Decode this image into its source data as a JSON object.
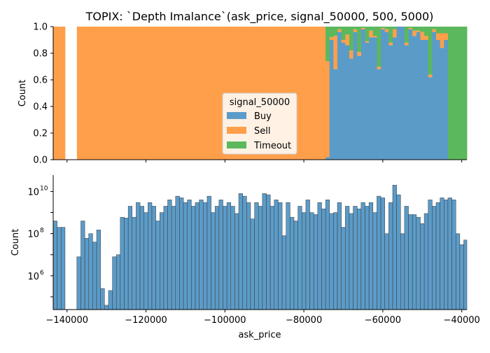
{
  "chart_data": {
    "title": "TOPIX: `Depth Imalance`(ask_price, signal_50000, 500, 5000)",
    "xlabel": "ask_price",
    "xlim": [
      -143500,
      -38700
    ],
    "bin_width": 1000,
    "x_ticks": [
      -140000,
      -120000,
      -100000,
      -80000,
      -60000,
      -40000
    ],
    "x_tick_labels": [
      "−140000",
      "−120000",
      "−100000",
      "−80000",
      "−60000",
      "−40000"
    ],
    "colors": {
      "Buy": "#5b9bc8",
      "Sell": "#ff9f4a",
      "Timeout": "#5cb85c"
    },
    "panels": [
      {
        "type": "bar",
        "stacked": "fill",
        "ylabel": "Count",
        "ylim": [
          0,
          1
        ],
        "y_ticks": [
          0,
          0.2,
          0.4,
          0.6,
          0.8,
          1.0
        ],
        "y_tick_labels": [
          "0.0",
          "0.2",
          "0.4",
          "0.6",
          "0.8",
          "1.0"
        ],
        "legend": {
          "title": "signal_50000",
          "placement": "lower-center",
          "entries": [
            "Buy",
            "Sell",
            "Timeout"
          ]
        },
        "x": [
          -143000,
          -142000,
          -141000,
          -140000,
          -139000,
          -138000,
          -137000,
          -136000,
          -135000,
          -134000,
          -133000,
          -132000,
          -131000,
          -130000,
          -129000,
          -128000,
          -127000,
          -126000,
          -125000,
          -124000,
          -123000,
          -122000,
          -121000,
          -120000,
          -119000,
          -118000,
          -117000,
          -116000,
          -115000,
          -114000,
          -113000,
          -112000,
          -111000,
          -110000,
          -109000,
          -108000,
          -107000,
          -106000,
          -105000,
          -104000,
          -103000,
          -102000,
          -101000,
          -100000,
          -99000,
          -98000,
          -97000,
          -96000,
          -95000,
          -94000,
          -93000,
          -92000,
          -91000,
          -90000,
          -89000,
          -88000,
          -87000,
          -86000,
          -85000,
          -84000,
          -83000,
          -82000,
          -81000,
          -80000,
          -79000,
          -78000,
          -77000,
          -76000,
          -75000,
          -74000,
          -73000,
          -72000,
          -71000,
          -70000,
          -69000,
          -68000,
          -67000,
          -66000,
          -65000,
          -64000,
          -63000,
          -62000,
          -61000,
          -60000,
          -59000,
          -58000,
          -57000,
          -56000,
          -55000,
          -54000,
          -53000,
          -52000,
          -51000,
          -50000,
          -49000,
          -48000,
          -47000,
          -46000,
          -45000,
          -44000,
          -43000,
          -42000,
          -41000,
          -40000,
          -39000
        ],
        "series": [
          {
            "name": "Buy",
            "values": [
              0,
              0,
              0,
              null,
              null,
              null,
              0,
              0,
              0,
              0,
              0,
              0,
              0,
              0,
              0,
              0,
              0,
              0,
              0,
              0,
              0,
              0,
              0,
              0,
              0,
              0,
              0,
              0,
              0,
              0,
              0,
              0,
              0,
              0,
              0,
              0,
              0,
              0,
              0,
              0,
              0,
              0,
              0,
              0,
              0,
              0,
              0,
              0,
              0,
              0,
              0,
              0,
              0,
              0,
              0,
              0,
              0,
              0,
              0,
              0,
              0,
              0,
              0,
              0,
              0,
              0,
              0,
              0,
              0,
              0.02,
              0.9,
              0.68,
              0.96,
              0.88,
              0.86,
              0.76,
              0.96,
              0.78,
              0.98,
              0.88,
              0.92,
              0.92,
              0.68,
              0.98,
              0.96,
              0.86,
              0.92,
              1.0,
              1.0,
              0.86,
              0.98,
              0.93,
              0.96,
              0.9,
              0.9,
              0.62,
              0.96,
              0.9,
              0.84,
              0.9,
              0,
              0,
              0,
              0,
              0
            ]
          },
          {
            "name": "Sell",
            "values": [
              1,
              1,
              1,
              null,
              null,
              null,
              1,
              1,
              1,
              1,
              1,
              1,
              1,
              1,
              1,
              1,
              1,
              1,
              1,
              1,
              1,
              1,
              1,
              1,
              1,
              1,
              1,
              1,
              1,
              1,
              1,
              1,
              1,
              1,
              1,
              1,
              1,
              1,
              1,
              1,
              1,
              1,
              1,
              1,
              1,
              1,
              1,
              1,
              1,
              1,
              1,
              1,
              1,
              1,
              1,
              1,
              1,
              1,
              1,
              1,
              1,
              1,
              1,
              1,
              1,
              1,
              1,
              1,
              1,
              0.72,
              0.02,
              0.25,
              0.02,
              0.02,
              0.08,
              0.06,
              0.02,
              0.03,
              0.01,
              0.01,
              0.05,
              0.01,
              0.02,
              0.01,
              0.02,
              0.02,
              0.06,
              0,
              0,
              0.02,
              0.01,
              0.04,
              0.01,
              0.06,
              0.03,
              0.02,
              0.02,
              0.05,
              0.11,
              0.05,
              0,
              0,
              0,
              0,
              0
            ]
          },
          {
            "name": "Timeout",
            "values": [
              0,
              0,
              0,
              null,
              null,
              null,
              0,
              0,
              0,
              0,
              0,
              0,
              0,
              0,
              0,
              0,
              0,
              0,
              0,
              0,
              0,
              0,
              0,
              0,
              0,
              0,
              0,
              0,
              0,
              0,
              0,
              0,
              0,
              0,
              0,
              0,
              0,
              0,
              0,
              0,
              0,
              0,
              0,
              0,
              0,
              0,
              0,
              0,
              0,
              0,
              0,
              0,
              0,
              0,
              0,
              0,
              0,
              0,
              0,
              0,
              0,
              0,
              0,
              0,
              0,
              0,
              0,
              0,
              0,
              0.26,
              0.08,
              0.07,
              0.02,
              0.1,
              0.06,
              0.18,
              0.02,
              0.19,
              0.01,
              0.11,
              0.03,
              0.07,
              0.3,
              0.01,
              0.02,
              0.12,
              0.02,
              0,
              0,
              0.12,
              0.01,
              0.03,
              0.03,
              0.04,
              0.07,
              0.36,
              0.02,
              0.05,
              0.05,
              0.05,
              1,
              1,
              1,
              1,
              1
            ]
          }
        ]
      },
      {
        "type": "bar",
        "ylabel": "Count",
        "yscale": "log",
        "ylim": [
          25000,
          60000000000
        ],
        "y_ticks": [
          1000000,
          100000000,
          10000000000
        ],
        "y_tick_labels": [
          [
            "10",
            "6"
          ],
          [
            "10",
            "8"
          ],
          [
            "10",
            "10"
          ]
        ],
        "x": [
          -143000,
          -142000,
          -141000,
          -140000,
          -139000,
          -138000,
          -137000,
          -136000,
          -135000,
          -134000,
          -133000,
          -132000,
          -131000,
          -130000,
          -129000,
          -128000,
          -127000,
          -126000,
          -125000,
          -124000,
          -123000,
          -122000,
          -121000,
          -120000,
          -119000,
          -118000,
          -117000,
          -116000,
          -115000,
          -114000,
          -113000,
          -112000,
          -111000,
          -110000,
          -109000,
          -108000,
          -107000,
          -106000,
          -105000,
          -104000,
          -103000,
          -102000,
          -101000,
          -100000,
          -99000,
          -98000,
          -97000,
          -96000,
          -95000,
          -94000,
          -93000,
          -92000,
          -91000,
          -90000,
          -89000,
          -88000,
          -87000,
          -86000,
          -85000,
          -84000,
          -83000,
          -82000,
          -81000,
          -80000,
          -79000,
          -78000,
          -77000,
          -76000,
          -75000,
          -74000,
          -73000,
          -72000,
          -71000,
          -70000,
          -69000,
          -68000,
          -67000,
          -66000,
          -65000,
          -64000,
          -63000,
          -62000,
          -61000,
          -60000,
          -59000,
          -58000,
          -57000,
          -56000,
          -55000,
          -54000,
          -53000,
          -52000,
          -51000,
          -50000,
          -49000,
          -48000,
          -47000,
          -46000,
          -45000,
          -44000,
          -43000,
          -42000,
          -41000,
          -40000,
          -39000
        ],
        "values": [
          400000000,
          200000000,
          200000000,
          null,
          null,
          null,
          8000000,
          400000000,
          60000000,
          100000000,
          40000000,
          150000000,
          250000,
          40000,
          200000,
          8000000,
          10000000,
          600000000,
          550000000,
          2000000000,
          600000000,
          3000000000,
          2000000000,
          1000000000,
          3000000000,
          2000000000,
          400000000,
          1000000000,
          2000000000,
          4000000000,
          2000000000,
          6000000000,
          5000000000,
          3000000000,
          4000000000,
          2000000000,
          3000000000,
          4000000000,
          3000000000,
          6000000000,
          1000000000,
          2000000000,
          4000000000,
          2000000000,
          3000000000,
          2000000000,
          900000000,
          8000000000,
          6000000000,
          3000000000,
          500000000,
          3000000000,
          2000000000,
          8000000000,
          7000000000,
          2000000000,
          4000000000,
          3000000000,
          80000000,
          3000000000,
          600000000,
          400000000,
          2000000000,
          1000000000,
          4000000000,
          1000000000,
          800000000,
          3000000000,
          1500000000,
          4000000000,
          900000000,
          1000000000,
          3000000000,
          200000000,
          2000000000,
          900000000,
          2000000000,
          1500000000,
          3000000000,
          2000000000,
          3000000000,
          1000000000,
          6000000000,
          5000000000,
          100000000,
          3000000000,
          20000000000,
          7000000000,
          100000000,
          2000000000,
          800000000,
          800000000,
          600000000,
          300000000,
          900000000,
          4000000000,
          2000000000,
          3000000000,
          5000000000,
          4000000000,
          5000000000,
          4000000000,
          100000000,
          30000000,
          50000000
        ]
      }
    ]
  }
}
